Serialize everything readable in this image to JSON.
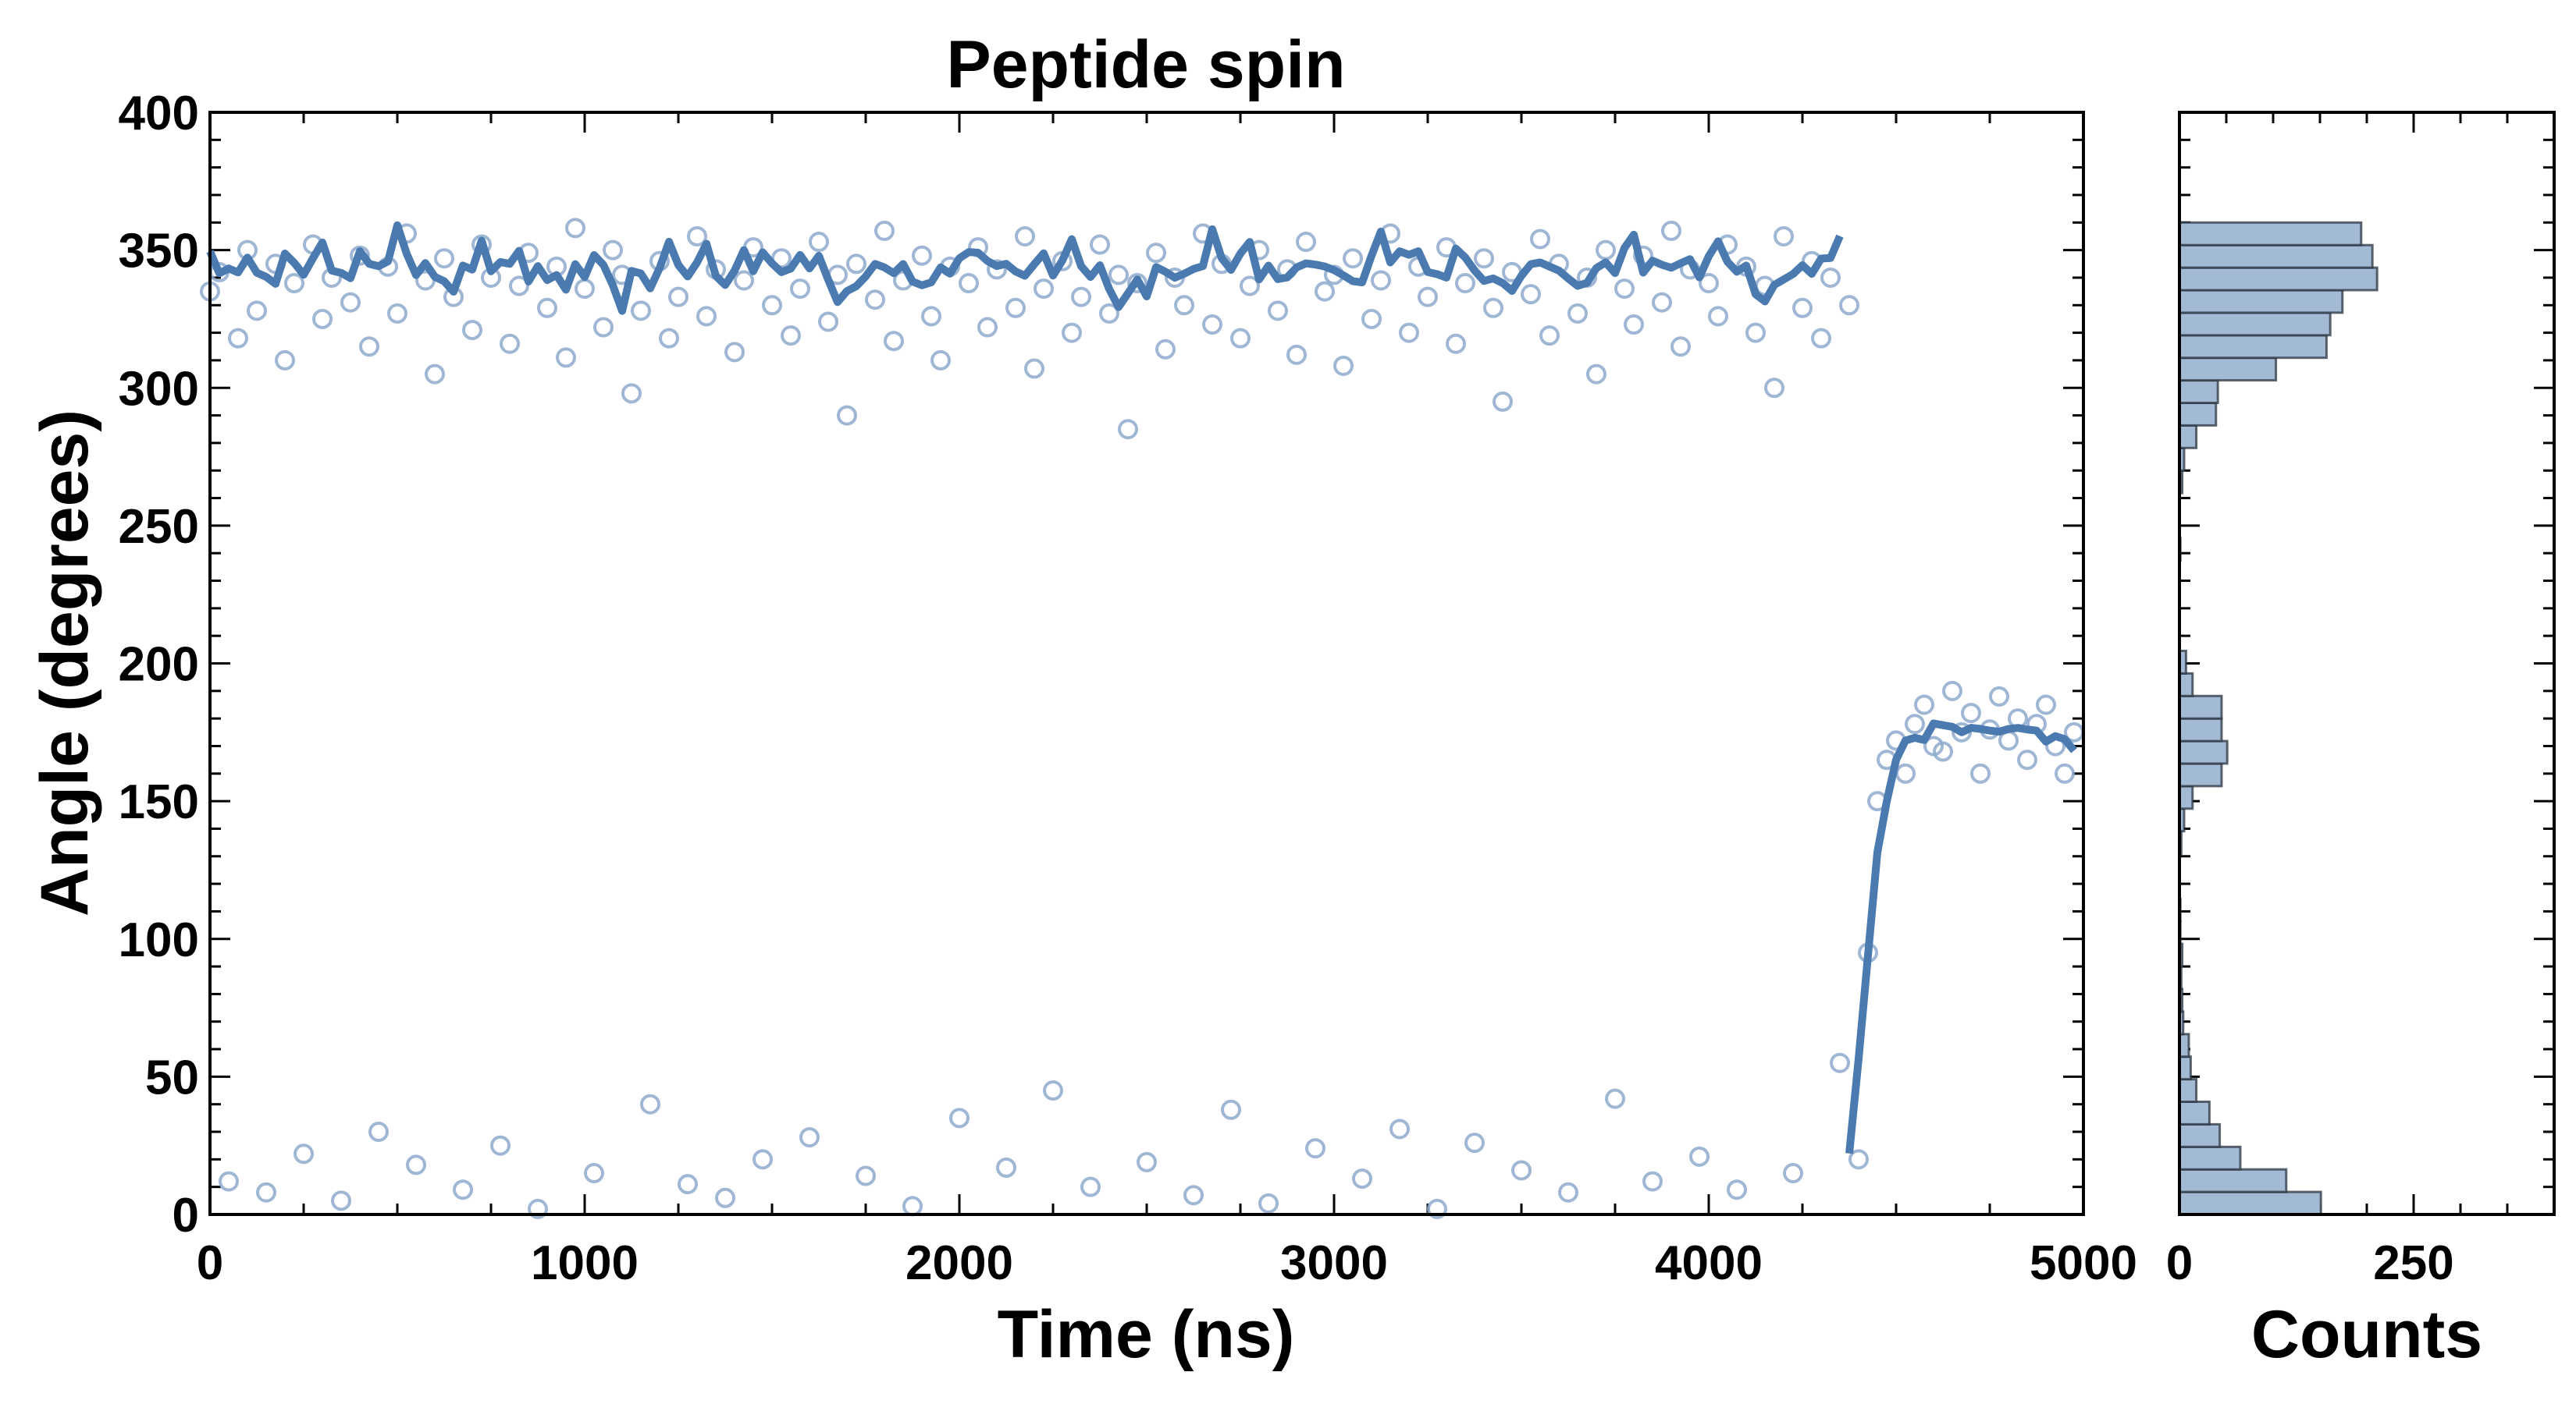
{
  "chart_data": [
    {
      "type": "scatter",
      "title": "Peptide spin",
      "xlabel": "Time (ns)",
      "ylabel": "Angle (degrees)",
      "xlim": [
        0,
        5000
      ],
      "ylim": [
        0,
        400
      ],
      "xticks": [
        "0",
        "1000",
        "2000",
        "3000",
        "4000",
        "5000"
      ],
      "yticks": [
        "0",
        "50",
        "100",
        "150",
        "200",
        "250",
        "300",
        "350",
        "400"
      ],
      "marker_color": "#8eaacd",
      "line_color": "#4a7ab0",
      "x_step": 25,
      "y": [
        335,
        342,
        12,
        318,
        350,
        328,
        8,
        345,
        310,
        338,
        22,
        352,
        325,
        340,
        5,
        331,
        348,
        315,
        30,
        344,
        327,
        356,
        18,
        339,
        305,
        347,
        333,
        9,
        321,
        352,
        340,
        25,
        316,
        337,
        349,
        2,
        329,
        344,
        311,
        358,
        336,
        15,
        322,
        350,
        341,
        298,
        328,
        40,
        346,
        318,
        333,
        11,
        355,
        326,
        343,
        6,
        313,
        339,
        351,
        20,
        330,
        347,
        319,
        336,
        28,
        353,
        324,
        341,
        290,
        345,
        14,
        332,
        357,
        317,
        339,
        3,
        348,
        326,
        310,
        344,
        35,
        338,
        351,
        322,
        343,
        17,
        329,
        355,
        307,
        336,
        45,
        346,
        320,
        333,
        10,
        352,
        327,
        341,
        285,
        338,
        19,
        349,
        314,
        340,
        330,
        7,
        356,
        323,
        345,
        38,
        318,
        337,
        350,
        4,
        328,
        343,
        312,
        353,
        24,
        335,
        341,
        308,
        347,
        13,
        325,
        339,
        356,
        31,
        320,
        344,
        333,
        2,
        351,
        316,
        338,
        26,
        347,
        329,
        295,
        342,
        16,
        334,
        354,
        319,
        345,
        8,
        327,
        340,
        305,
        350,
        42,
        336,
        323,
        348,
        12,
        331,
        357,
        315,
        343,
        21,
        338,
        326,
        352,
        9,
        344,
        320,
        337,
        300,
        355,
        15,
        329,
        346,
        318,
        340,
        55,
        330,
        20,
        95,
        150,
        165,
        172,
        160,
        178,
        185,
        170,
        168,
        190,
        175,
        182,
        160,
        176,
        188,
        172,
        180,
        165,
        178,
        185,
        170,
        160,
        175
      ]
    },
    {
      "type": "bar",
      "orientation": "horizontal",
      "xlabel": "Counts",
      "xlim": [
        0,
        400
      ],
      "xticks": [
        "0",
        "250"
      ],
      "bin_range": [
        0,
        360
      ],
      "bar_color": "#a3bad5",
      "edge_color": "#2b3440",
      "counts": [
        151,
        114,
        65,
        43,
        32,
        18,
        12,
        10,
        4,
        3,
        2,
        3,
        1,
        1,
        0,
        0,
        2,
        5,
        14,
        45,
        51,
        45,
        45,
        14,
        7,
        0,
        0,
        0,
        0,
        1,
        0,
        0,
        3,
        5,
        18,
        39,
        41,
        103,
        157,
        161,
        174,
        211,
        206,
        194
      ]
    }
  ]
}
